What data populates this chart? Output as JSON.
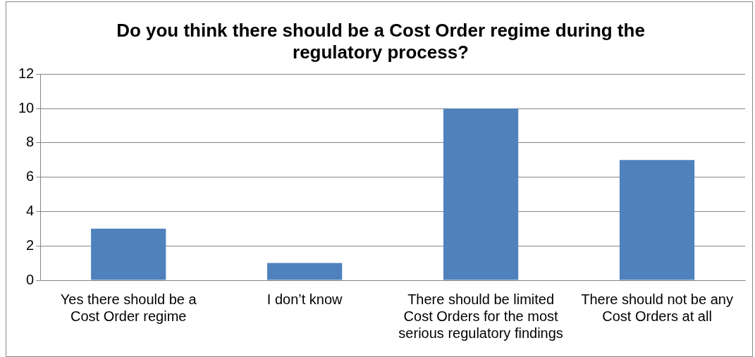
{
  "chart_data": {
    "type": "bar",
    "title": "Do you think there should be a Cost Order regime during the regulatory process?",
    "categories": [
      "Yes there should be a Cost Order regime",
      "I don’t know",
      "There should be limited Cost Orders for the most serious regulatory findings",
      "There should not be any Cost Orders at all"
    ],
    "values": [
      3,
      1,
      10,
      7
    ],
    "color": "#4f81bd",
    "ylim": [
      0,
      12
    ],
    "yticks": [
      0,
      2,
      4,
      6,
      8,
      10,
      12
    ],
    "grid": "y"
  }
}
